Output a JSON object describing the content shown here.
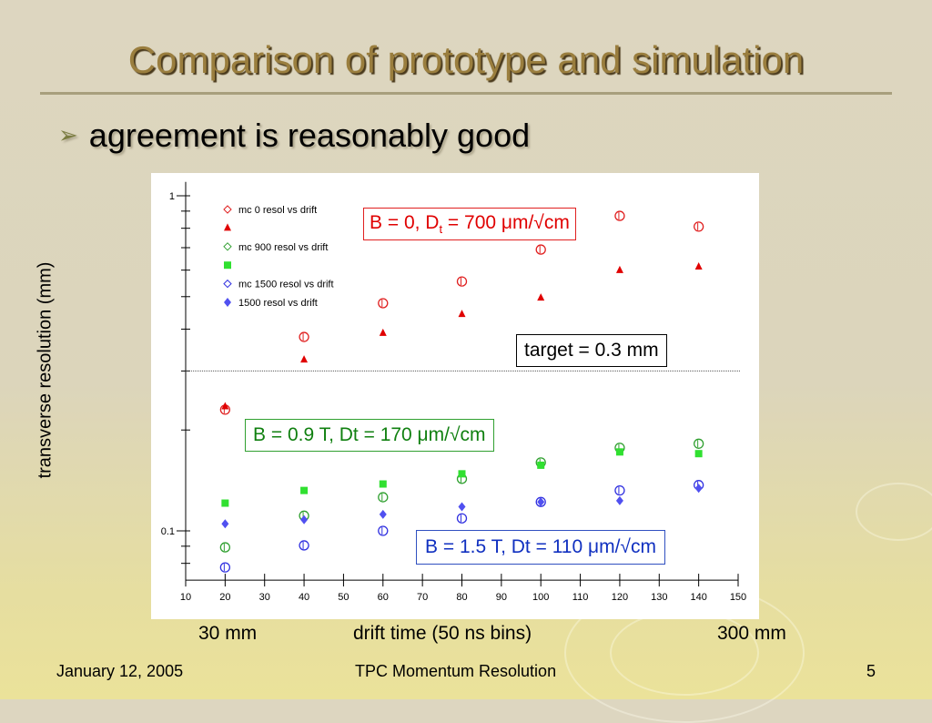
{
  "title": "Comparison of prototype and simulation",
  "bullet": "agreement is reasonably good",
  "annotations": {
    "b0_pre": "B = 0, D",
    "b0_sub": "t",
    "b0_post": " = 700 μm/√cm",
    "target": "target = 0.3 mm",
    "b09": "B = 0.9 T, Dt = 170 μm/√cm",
    "b15": "B = 1.5 T, Dt = 110 μm/√cm"
  },
  "below_axis": {
    "left": "30 mm",
    "center": "drift time (50 ns bins)",
    "right": "300 mm"
  },
  "footer": {
    "date": "January 12, 2005",
    "center": "TPC Momentum Resolution",
    "page": "5"
  },
  "chart_data": {
    "type": "scatter",
    "xlabel": "drift time (50 ns bins)",
    "ylabel": "transverse resolution (mm)",
    "xlim": [
      10,
      150
    ],
    "ylim": [
      0.0713,
      1.1
    ],
    "yscale": "log",
    "xticks": [
      10,
      20,
      30,
      40,
      50,
      60,
      70,
      80,
      90,
      100,
      110,
      120,
      130,
      140,
      150
    ],
    "ytick_labels": [
      "1",
      "0.1"
    ],
    "legend_position": "top-left",
    "reference_line": {
      "y": 0.3,
      "label": "target = 0.3 mm"
    },
    "x": [
      20,
      40,
      60,
      80,
      100,
      120,
      140
    ],
    "series": [
      {
        "name": "mc 0 resol vs drift",
        "marker": "open-circle",
        "color": "#e02020",
        "values": [
          0.23,
          0.379,
          0.478,
          0.555,
          0.691,
          0.871,
          0.809
        ]
      },
      {
        "name": "0 resol vs drift",
        "marker": "triangle",
        "color": "#e00000",
        "values": [
          0.235,
          0.324,
          0.389,
          0.443,
          0.496,
          0.599,
          0.614
        ]
      },
      {
        "name": "mc 900 resol vs drift",
        "marker": "open-circle",
        "color": "#30a030",
        "values": [
          0.0893,
          0.111,
          0.126,
          0.143,
          0.16,
          0.177,
          0.182
        ]
      },
      {
        "name": "900 resol vs drift",
        "marker": "square",
        "color": "#30e030",
        "values": [
          0.121,
          0.132,
          0.138,
          0.148,
          0.157,
          0.172,
          0.17
        ]
      },
      {
        "name": "mc 1500 resol vs drift",
        "marker": "open-circle",
        "color": "#3030e0",
        "values": [
          0.0778,
          0.0905,
          0.1,
          0.109,
          0.122,
          0.132,
          0.137
        ]
      },
      {
        "name": "1500 resol vs drift",
        "marker": "diamond",
        "color": "#5050f0",
        "values": [
          0.105,
          0.108,
          0.112,
          0.118,
          0.122,
          0.123,
          0.134
        ]
      }
    ]
  }
}
